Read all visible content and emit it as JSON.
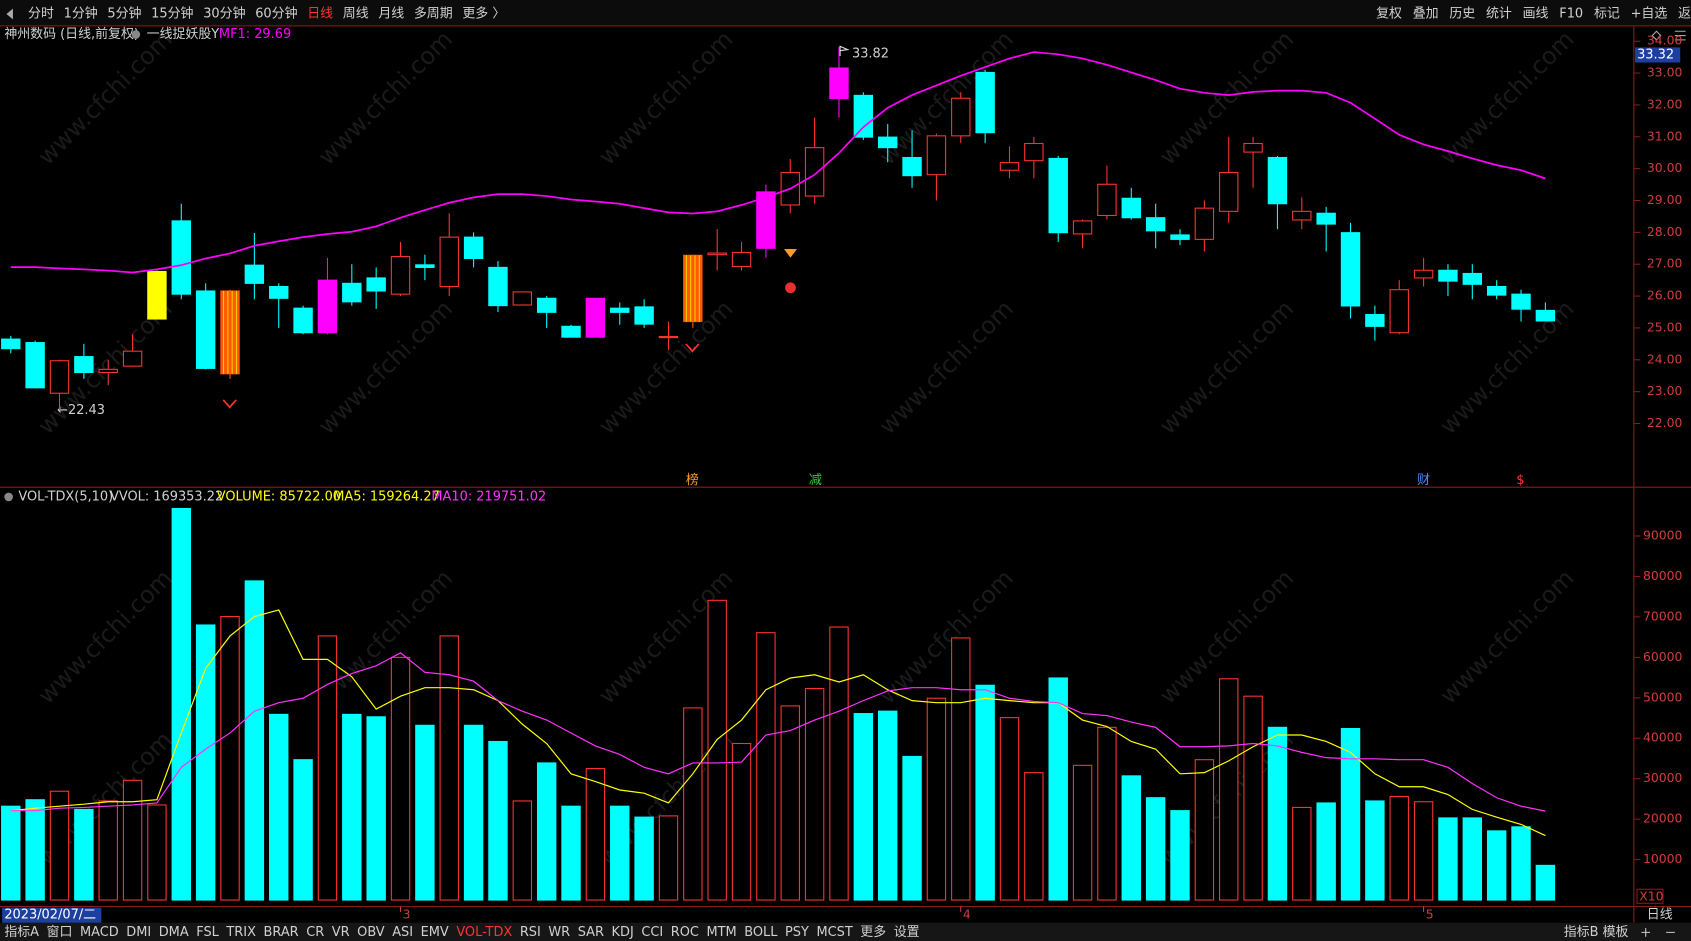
{
  "toolbar": {
    "periods": [
      "分时",
      "1分钟",
      "5分钟",
      "15分钟",
      "30分钟",
      "60分钟",
      "日线",
      "周线",
      "月线",
      "多周期",
      "更多 〉"
    ],
    "active": "日线",
    "actions": [
      "复权",
      "叠加",
      "历史",
      "统计",
      "画线",
      "F10",
      "标记",
      "+自选",
      "返回"
    ]
  },
  "watermark": "www.cfchi.com",
  "bottom_tabs": {
    "items": [
      "指标A",
      "窗口",
      "MACD",
      "DMI",
      "DMA",
      "FSL",
      "TRIX",
      "BRAR",
      "CR",
      "VR",
      "OBV",
      "ASI",
      "EMV",
      "VOL-TDX",
      "RSI",
      "WR",
      "SAR",
      "KDJ",
      "CCI",
      "ROC",
      "MTM",
      "BOLL",
      "PSY",
      "MCST",
      "更多",
      "设置"
    ],
    "active": "VOL-TDX",
    "right": [
      "指标B",
      "模板"
    ],
    "period": "日线"
  },
  "chart_data": [
    {
      "type": "candlestick",
      "title": "神州数码 (日线,前复权)",
      "subtitle": "一线捉妖股Y",
      "open": [
        24.65,
        24.54,
        22.95,
        24.1,
        23.6,
        23.8,
        25.28,
        28.36,
        26.16,
        23.56,
        26.97,
        26.3,
        25.62,
        24.85,
        26.4,
        26.57,
        26.06,
        26.98,
        26.3,
        27.85,
        26.9,
        25.72,
        25.93,
        25.05,
        24.71,
        25.62,
        25.66,
        24.7,
        25.2,
        27.3,
        26.93,
        27.5,
        28.86,
        29.14,
        32.2,
        32.3,
        30.99,
        30.35,
        29.81,
        31.03,
        33.02,
        29.95,
        30.25,
        30.32,
        27.95,
        28.53,
        29.07,
        28.46,
        27.92,
        27.78,
        28.66,
        30.52,
        30.35,
        28.39,
        28.6,
        27.99,
        25.42,
        24.85,
        26.57,
        26.81,
        26.71,
        26.3,
        26.06,
        25.55
      ],
      "high": [
        24.75,
        24.6,
        24.0,
        24.5,
        24.0,
        24.8,
        26.8,
        28.9,
        26.4,
        26.2,
        27.98,
        26.4,
        25.7,
        27.2,
        27.0,
        26.9,
        27.7,
        27.3,
        28.6,
        28.0,
        27.1,
        26.13,
        26.0,
        25.1,
        25.93,
        25.8,
        25.9,
        25.2,
        27.3,
        28.1,
        27.7,
        29.5,
        30.3,
        31.6,
        33.82,
        32.4,
        31.4,
        31.2,
        31.1,
        32.4,
        33.1,
        30.7,
        31.0,
        30.4,
        28.4,
        30.1,
        29.4,
        28.9,
        28.1,
        29.0,
        31.0,
        31.0,
        30.4,
        29.1,
        28.8,
        28.3,
        25.7,
        26.5,
        27.2,
        27.0,
        27.0,
        26.5,
        26.2,
        25.8
      ],
      "low": [
        24.2,
        23.1,
        22.43,
        23.4,
        23.2,
        23.8,
        25.28,
        25.9,
        23.7,
        23.4,
        25.9,
        25.0,
        24.8,
        24.8,
        25.7,
        25.6,
        26.0,
        26.5,
        26.0,
        26.9,
        25.5,
        25.7,
        25.0,
        24.7,
        24.71,
        25.1,
        25.0,
        24.3,
        25.0,
        26.8,
        26.8,
        27.2,
        28.6,
        28.9,
        31.6,
        30.9,
        30.2,
        29.4,
        29.0,
        30.8,
        30.8,
        29.7,
        29.7,
        27.7,
        27.5,
        28.4,
        28.4,
        27.5,
        27.6,
        27.4,
        28.3,
        29.4,
        28.1,
        28.1,
        27.4,
        25.3,
        24.6,
        24.8,
        26.3,
        26.0,
        25.9,
        25.9,
        25.2,
        25.2
      ],
      "close": [
        24.35,
        23.12,
        23.97,
        23.6,
        23.7,
        24.27,
        26.77,
        26.06,
        23.73,
        26.16,
        26.4,
        25.93,
        24.85,
        26.5,
        25.82,
        26.16,
        27.24,
        26.9,
        27.85,
        27.18,
        25.7,
        26.13,
        25.49,
        24.71,
        25.93,
        25.49,
        25.12,
        24.73,
        27.28,
        27.35,
        27.37,
        29.27,
        29.88,
        30.66,
        33.16,
        30.99,
        30.66,
        29.78,
        31.03,
        32.21,
        31.13,
        30.19,
        30.79,
        27.99,
        28.36,
        29.51,
        28.46,
        28.05,
        27.78,
        28.76,
        29.88,
        30.79,
        28.9,
        28.66,
        28.26,
        25.69,
        25.05,
        26.2,
        26.81,
        26.47,
        26.37,
        26.03,
        25.59,
        25.22
      ],
      "up_color": "#ff3232",
      "down_color": "#00ffff",
      "colors": [
        "#00ffff",
        "#00ffff",
        "#ff3232",
        "#00ffff",
        "#ff3232",
        "#ff3232",
        "#ffff00",
        "#00ffff",
        "#00ffff",
        "#ff5a00",
        "#00ffff",
        "#00ffff",
        "#00ffff",
        "#ff00ff",
        "#00ffff",
        "#00ffff",
        "#ff3232",
        "#00ffff",
        "#ff3232",
        "#00ffff",
        "#00ffff",
        "#ff3232",
        "#00ffff",
        "#00ffff",
        "#ff00ff",
        "#00ffff",
        "#00ffff",
        "#ff3232",
        "#ff5a00",
        "#ff3232",
        "#ff3232",
        "#ff00ff",
        "#ff3232",
        "#ff3232",
        "#ff00ff",
        "#00ffff",
        "#00ffff",
        "#00ffff",
        "#ff3232",
        "#ff3232",
        "#00ffff",
        "#ff3232",
        "#ff3232",
        "#00ffff",
        "#ff3232",
        "#ff3232",
        "#00ffff",
        "#00ffff",
        "#00ffff",
        "#ff3232",
        "#ff3232",
        "#ff3232",
        "#00ffff",
        "#ff3232",
        "#00ffff",
        "#00ffff",
        "#00ffff",
        "#ff3232",
        "#ff3232",
        "#00ffff",
        "#00ffff",
        "#00ffff",
        "#00ffff",
        "#00ffff"
      ],
      "series": [
        {
          "name": "MF1: 29.69",
          "color": "#ff00ff",
          "values": [
            26.91,
            26.91,
            26.87,
            26.84,
            26.8,
            26.74,
            26.84,
            26.97,
            27.18,
            27.34,
            27.58,
            27.72,
            27.85,
            27.95,
            28.02,
            28.19,
            28.46,
            28.7,
            28.93,
            29.1,
            29.2,
            29.2,
            29.14,
            29.03,
            28.97,
            28.9,
            28.76,
            28.63,
            28.59,
            28.66,
            28.86,
            29.1,
            29.37,
            29.81,
            30.49,
            31.3,
            31.91,
            32.31,
            32.61,
            32.92,
            33.19,
            33.46,
            33.66,
            33.59,
            33.46,
            33.26,
            33.02,
            32.78,
            32.51,
            32.38,
            32.31,
            32.41,
            32.45,
            32.45,
            32.38,
            32.07,
            31.57,
            31.06,
            30.76,
            30.55,
            30.32,
            30.11,
            29.95,
            29.69
          ]
        }
      ],
      "annotations": [
        "33.82",
        "←22.43"
      ],
      "price_tag": "33.32",
      "events": [
        "榜",
        "减",
        "财",
        "$"
      ],
      "ylim": [
        20.0,
        34.55
      ],
      "yticks": [
        {
          "value": 22,
          "label": "22.00"
        },
        {
          "value": 23,
          "label": "23.00"
        },
        {
          "value": 24,
          "label": "24.00"
        },
        {
          "value": 25,
          "label": "25.00"
        },
        {
          "value": 26,
          "label": "26.00"
        },
        {
          "value": 27,
          "label": "27.00"
        },
        {
          "value": 28,
          "label": "28.00"
        },
        {
          "value": 29,
          "label": "29.00"
        },
        {
          "value": 30,
          "label": "30.00"
        },
        {
          "value": 31,
          "label": "31.00"
        },
        {
          "value": 32,
          "label": "32.00"
        },
        {
          "value": 33,
          "label": "33.00"
        },
        {
          "value": 34,
          "label": "34.00"
        }
      ]
    },
    {
      "type": "bar",
      "title": "VOL-TDX(5,10)",
      "subtitle": "VVOL: 169353.22",
      "unit": "X10",
      "categories": [
        "2023/02/07/二",
        null,
        null,
        null,
        null,
        null,
        null,
        null,
        null,
        null,
        null,
        null,
        null,
        null,
        null,
        null,
        "3",
        null,
        null,
        null,
        null,
        null,
        null,
        null,
        null,
        null,
        null,
        null,
        null,
        null,
        null,
        null,
        null,
        null,
        null,
        null,
        null,
        null,
        null,
        "4",
        null,
        null,
        null,
        null,
        null,
        null,
        null,
        null,
        null,
        null,
        null,
        null,
        null,
        null,
        null,
        null,
        null,
        null,
        "5",
        null,
        null,
        null,
        null,
        null
      ],
      "series": [
        {
          "name": "VOLUME: 85722.00",
          "color": "#ffff00",
          "type": "bar",
          "values": [
            23200,
            24800,
            26900,
            22400,
            24500,
            29600,
            23500,
            96800,
            68000,
            70100,
            78900,
            45900,
            34700,
            65300,
            45900,
            45300,
            60000,
            43200,
            65300,
            43200,
            39200,
            24500,
            33900,
            23200,
            32500,
            23200,
            20500,
            20800,
            47500,
            74100,
            38700,
            66100,
            48000,
            52300,
            67500,
            46100,
            46700,
            35500,
            49900,
            64800,
            53100,
            45100,
            31500,
            54900,
            33300,
            42700,
            30700,
            25300,
            22100,
            34700,
            54700,
            50400,
            42700,
            22900,
            24000,
            42400,
            24500,
            25600,
            24300,
            20300,
            20300,
            17100,
            18100,
            8572.2
          ]
        },
        {
          "name": "MA5: 159264.27",
          "color": "#ffff00",
          "type": "line",
          "values": [
            22100,
            22700,
            23200,
            23700,
            24300,
            24300,
            24800,
            41300,
            57300,
            65300,
            70100,
            71700,
            59500,
            59500,
            55200,
            47200,
            50400,
            52500,
            52500,
            52000,
            49300,
            43500,
            38700,
            31200,
            29300,
            27200,
            26400,
            24000,
            31200,
            39700,
            44500,
            52000,
            54900,
            55700,
            53900,
            55700,
            52000,
            49300,
            48800,
            48800,
            49900,
            49300,
            48800,
            48800,
            44500,
            42900,
            39200,
            37300,
            31200,
            31500,
            34400,
            37900,
            40800,
            40800,
            39200,
            36500,
            31200,
            28000,
            28000,
            26100,
            22400,
            20500,
            18700,
            15926.43
          ]
        },
        {
          "name": "MA10: 219751.02",
          "color": "#ff33ff",
          "type": "line",
          "values": [
            22100,
            22100,
            22700,
            22900,
            23200,
            23500,
            24000,
            32800,
            37300,
            41300,
            46700,
            48800,
            49900,
            53300,
            56000,
            57900,
            61100,
            56300,
            55700,
            54100,
            49300,
            46700,
            44500,
            41300,
            38100,
            36000,
            32800,
            31200,
            33900,
            33900,
            34100,
            40800,
            41900,
            44500,
            46700,
            49300,
            51700,
            52500,
            52500,
            52000,
            52000,
            49900,
            49100,
            48800,
            46100,
            45600,
            44000,
            42700,
            37900,
            37900,
            38100,
            38700,
            38100,
            36500,
            35200,
            34900,
            34900,
            34700,
            34700,
            32800,
            28800,
            25300,
            23200,
            21975.1
          ]
        }
      ],
      "ylim": [
        0,
        101000
      ],
      "yticks": [
        10000,
        20000,
        30000,
        40000,
        50000,
        60000,
        70000,
        80000,
        90000
      ]
    }
  ]
}
